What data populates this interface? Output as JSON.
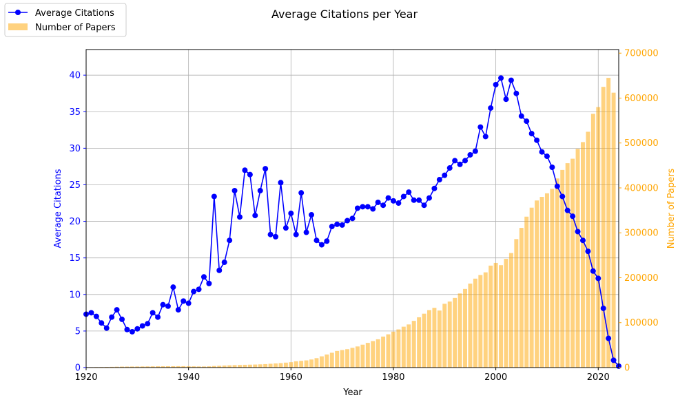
{
  "chart_data": {
    "type": "bar+line",
    "title": "Average Citations per Year",
    "xlabel": "Year",
    "ylabel_left": "Average Citations",
    "ylabel_right": "Number of Papers",
    "xlim": [
      1920,
      2024
    ],
    "ylim_left": [
      0,
      43.5
    ],
    "ylim_right": [
      0,
      708000
    ],
    "x_ticks": [
      1920,
      1940,
      1960,
      1980,
      2000,
      2020
    ],
    "y_left_ticks": [
      0,
      5,
      10,
      15,
      20,
      25,
      30,
      35,
      40
    ],
    "y_right_ticks": [
      0,
      100000,
      200000,
      300000,
      400000,
      500000,
      600000,
      700000
    ],
    "grid": true,
    "legend_position": "top-left",
    "colors": {
      "line": "#0000ff",
      "bars": "#ffa500",
      "left_axis": "#0000ff",
      "right_axis": "#ffa500"
    },
    "series": [
      {
        "name": "Average Citations",
        "kind": "line",
        "axis": "left",
        "x": [
          1920,
          1921,
          1922,
          1923,
          1924,
          1925,
          1926,
          1927,
          1928,
          1929,
          1930,
          1931,
          1932,
          1933,
          1934,
          1935,
          1936,
          1937,
          1938,
          1939,
          1940,
          1941,
          1942,
          1943,
          1944,
          1945,
          1946,
          1947,
          1948,
          1949,
          1950,
          1951,
          1952,
          1953,
          1954,
          1955,
          1956,
          1957,
          1958,
          1959,
          1960,
          1961,
          1962,
          1963,
          1964,
          1965,
          1966,
          1967,
          1968,
          1969,
          1970,
          1971,
          1972,
          1973,
          1974,
          1975,
          1976,
          1977,
          1978,
          1979,
          1980,
          1981,
          1982,
          1983,
          1984,
          1985,
          1986,
          1987,
          1988,
          1989,
          1990,
          1991,
          1992,
          1993,
          1994,
          1995,
          1996,
          1997,
          1998,
          1999,
          2000,
          2001,
          2002,
          2003,
          2004,
          2005,
          2006,
          2007,
          2008,
          2009,
          2010,
          2011,
          2012,
          2013,
          2014,
          2015,
          2016,
          2017,
          2018,
          2019,
          2020,
          2021,
          2022,
          2023,
          2024
        ],
        "values": [
          7.3,
          7.5,
          7.0,
          6.1,
          5.4,
          6.9,
          7.9,
          6.6,
          5.2,
          4.9,
          5.3,
          5.7,
          6.0,
          7.5,
          6.9,
          8.6,
          8.4,
          11.0,
          7.9,
          9.1,
          8.8,
          10.4,
          10.7,
          12.4,
          11.5,
          23.4,
          13.3,
          14.4,
          17.4,
          24.2,
          20.6,
          27.0,
          26.4,
          20.8,
          24.2,
          27.2,
          18.2,
          17.9,
          25.3,
          19.1,
          21.1,
          18.2,
          23.9,
          18.5,
          20.9,
          17.4,
          16.8,
          17.3,
          19.3,
          19.6,
          19.5,
          20.1,
          20.4,
          21.8,
          22.0,
          22.0,
          21.7,
          22.6,
          22.2,
          23.2,
          22.8,
          22.5,
          23.4,
          24.0,
          22.9,
          22.9,
          22.2,
          23.2,
          24.5,
          25.7,
          26.3,
          27.3,
          28.3,
          27.8,
          28.3,
          29.1,
          29.6,
          32.9,
          31.6,
          35.5,
          38.7,
          39.6,
          36.7,
          39.3,
          37.5,
          34.4,
          33.7,
          32.0,
          31.1,
          29.5,
          28.9,
          27.4,
          24.8,
          23.4,
          21.5,
          20.7,
          18.6,
          17.4,
          15.9,
          13.2,
          12.2,
          8.1,
          4.0,
          1.0,
          0.2
        ]
      },
      {
        "name": "Number of Papers",
        "kind": "bar",
        "axis": "right",
        "x": [
          1920,
          1921,
          1922,
          1923,
          1924,
          1925,
          1926,
          1927,
          1928,
          1929,
          1930,
          1931,
          1932,
          1933,
          1934,
          1935,
          1936,
          1937,
          1938,
          1939,
          1940,
          1941,
          1942,
          1943,
          1944,
          1945,
          1946,
          1947,
          1948,
          1949,
          1950,
          1951,
          1952,
          1953,
          1954,
          1955,
          1956,
          1957,
          1958,
          1959,
          1960,
          1961,
          1962,
          1963,
          1964,
          1965,
          1966,
          1967,
          1968,
          1969,
          1970,
          1971,
          1972,
          1973,
          1974,
          1975,
          1976,
          1977,
          1978,
          1979,
          1980,
          1981,
          1982,
          1983,
          1984,
          1985,
          1986,
          1987,
          1988,
          1989,
          1990,
          1991,
          1992,
          1993,
          1994,
          1995,
          1996,
          1997,
          1998,
          1999,
          2000,
          2001,
          2002,
          2003,
          2004,
          2005,
          2006,
          2007,
          2008,
          2009,
          2010,
          2011,
          2012,
          2013,
          2014,
          2015,
          2016,
          2017,
          2018,
          2019,
          2020,
          2021,
          2022,
          2023,
          2024
        ],
        "values": [
          1000,
          1000,
          1200,
          1300,
          1500,
          1700,
          2000,
          2200,
          2300,
          2400,
          2500,
          2600,
          2700,
          2800,
          2900,
          3000,
          3100,
          3100,
          3200,
          3200,
          3000,
          2800,
          2600,
          2500,
          2800,
          3500,
          4000,
          4500,
          5000,
          5500,
          5800,
          6200,
          6500,
          6800,
          7200,
          7800,
          8500,
          9200,
          10000,
          11000,
          12000,
          14000,
          15000,
          16000,
          18000,
          21000,
          25000,
          29000,
          33000,
          37000,
          39000,
          41000,
          44000,
          47000,
          51000,
          55000,
          59000,
          63000,
          69000,
          74000,
          80000,
          85000,
          91000,
          96000,
          104000,
          112000,
          120000,
          128000,
          133000,
          127000,
          142000,
          147000,
          155000,
          165000,
          175000,
          187000,
          198000,
          206000,
          212000,
          227000,
          233000,
          228000,
          242000,
          255000,
          286000,
          311000,
          336000,
          356000,
          372000,
          380000,
          388000,
          398000,
          421000,
          440000,
          455000,
          465000,
          487000,
          502000,
          525000,
          565000,
          580000,
          625000,
          645000,
          612000,
          0
        ]
      }
    ]
  }
}
